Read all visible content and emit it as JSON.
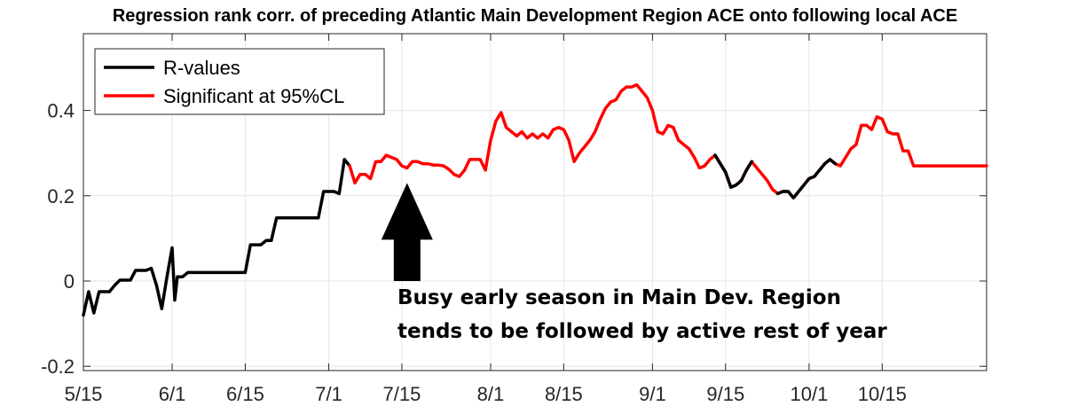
{
  "chart_data": {
    "type": "line",
    "title": "Regression rank corr. of preceding Atlantic Main Development Region ACE onto following local ACE",
    "xlabel": "",
    "ylabel": "",
    "x_unit": "day of year",
    "xlim": [
      135,
      308
    ],
    "ylim": [
      -0.21,
      0.58
    ],
    "x_ticks": [
      {
        "day": 135,
        "label": "5/15"
      },
      {
        "day": 152,
        "label": "6/1"
      },
      {
        "day": 166,
        "label": "6/15"
      },
      {
        "day": 182,
        "label": "7/1"
      },
      {
        "day": 196,
        "label": "7/15"
      },
      {
        "day": 213,
        "label": "8/1"
      },
      {
        "day": 227,
        "label": "8/15"
      },
      {
        "day": 244,
        "label": "9/1"
      },
      {
        "day": 258,
        "label": "9/15"
      },
      {
        "day": 274,
        "label": "10/1"
      },
      {
        "day": 288,
        "label": "10/15"
      }
    ],
    "y_ticks": [
      {
        "value": -0.2,
        "label": "-0.2"
      },
      {
        "value": 0,
        "label": "0"
      },
      {
        "value": 0.2,
        "label": "0.2"
      },
      {
        "value": 0.4,
        "label": "0.4"
      }
    ],
    "grid": true,
    "legend": "top-left",
    "series": [
      {
        "name": "R-values",
        "color": "#000000",
        "x": [
          135,
          136,
          137,
          138,
          139,
          140,
          141,
          142,
          143,
          144,
          145,
          146,
          147,
          148,
          149,
          150,
          151,
          152,
          152.5,
          153,
          154,
          155,
          156,
          157,
          158,
          159,
          160,
          161,
          162,
          163,
          164,
          165,
          166,
          167,
          168,
          169,
          170,
          171,
          172,
          173,
          174,
          175,
          176,
          177,
          178,
          179,
          180,
          181,
          182,
          183,
          184,
          185,
          186
        ],
        "y": [
          -0.08,
          -0.025,
          -0.075,
          -0.025,
          -0.025,
          -0.025,
          -0.01,
          0.002,
          0.002,
          0.002,
          0.025,
          0.025,
          0.025,
          0.03,
          -0.01,
          -0.065,
          0.01,
          0.078,
          -0.045,
          0.01,
          0.01,
          0.02,
          0.02,
          0.02,
          0.02,
          0.02,
          0.02,
          0.02,
          0.02,
          0.02,
          0.02,
          0.02,
          0.02,
          0.085,
          0.085,
          0.085,
          0.095,
          0.095,
          0.148,
          0.148,
          0.148,
          0.148,
          0.148,
          0.148,
          0.148,
          0.148,
          0.148,
          0.21,
          0.21,
          0.21,
          0.205,
          0.285,
          0.27
        ]
      },
      {
        "name": "Significant at 95%CL",
        "color": "#ff0000",
        "x": [
          186,
          187,
          188,
          189,
          190,
          191,
          192,
          193,
          194,
          195,
          196,
          197,
          198,
          199,
          200,
          201,
          202,
          203,
          204,
          205,
          206,
          207,
          208,
          209,
          210,
          211,
          212,
          213,
          214,
          215,
          216,
          217,
          218,
          219,
          220,
          221,
          222,
          223,
          224,
          225,
          226,
          227,
          228,
          229,
          230,
          231,
          232,
          233,
          234,
          235,
          236,
          237,
          238,
          239,
          240,
          241,
          242,
          243,
          244,
          245,
          246,
          247,
          248,
          249,
          250,
          251,
          252,
          253,
          254,
          255,
          256,
          257,
          258,
          259,
          260,
          261,
          262,
          263,
          264,
          265,
          266,
          267,
          268,
          269,
          270,
          271,
          272,
          273,
          274,
          275,
          276,
          277,
          278,
          279,
          280,
          281,
          282,
          283,
          284,
          285,
          286,
          287,
          288,
          289,
          290,
          291,
          292,
          293,
          294,
          295,
          296,
          297,
          298,
          299,
          300,
          301,
          302,
          303,
          304,
          305,
          306,
          307,
          308
        ],
        "y": [
          0.27,
          0.23,
          0.25,
          0.25,
          0.24,
          0.28,
          0.28,
          0.295,
          0.29,
          0.285,
          0.27,
          0.265,
          0.28,
          0.28,
          0.275,
          0.275,
          0.272,
          0.272,
          0.27,
          0.262,
          0.25,
          0.245,
          0.26,
          0.285,
          0.285,
          0.285,
          0.26,
          0.33,
          0.375,
          0.395,
          0.36,
          0.35,
          0.34,
          0.35,
          0.335,
          0.345,
          0.335,
          0.345,
          0.335,
          0.355,
          0.36,
          0.355,
          0.33,
          0.28,
          0.3,
          0.315,
          0.33,
          0.35,
          0.38,
          0.405,
          0.42,
          0.425,
          0.445,
          0.455,
          0.455,
          0.46,
          0.445,
          0.43,
          0.4,
          0.35,
          0.345,
          0.365,
          0.36,
          0.33,
          0.32,
          0.31,
          0.29,
          0.265,
          0.27,
          0.285,
          0.295,
          0.275,
          0.255,
          0.22,
          0.225,
          0.235,
          0.26,
          0.28,
          0.265,
          0.25,
          0.235,
          0.215,
          0.205,
          0.21,
          0.21,
          0.195,
          0.21,
          0.225,
          0.24,
          0.245,
          0.26,
          0.275,
          0.285,
          0.275,
          0.27,
          0.29,
          0.31,
          0.32,
          0.365,
          0.365,
          0.355,
          0.385,
          0.38,
          0.35,
          0.345,
          0.345,
          0.305,
          0.305,
          0.27,
          0.27,
          0.27,
          0.27,
          0.27,
          0.27,
          0.27,
          0.27,
          0.27,
          0.27,
          0.27,
          0.27,
          0.27,
          0.27,
          0.27
        ],
        "segments_black": [
          [
            256,
            263
          ],
          [
            268,
            279
          ]
        ]
      }
    ],
    "annotation": {
      "lines": [
        "Busy early season in Main Dev. Region",
        "tends to be followed by active rest of year"
      ],
      "arrow": {
        "x": 197,
        "y_tip": 0.23,
        "y_base": 0.0
      }
    }
  }
}
